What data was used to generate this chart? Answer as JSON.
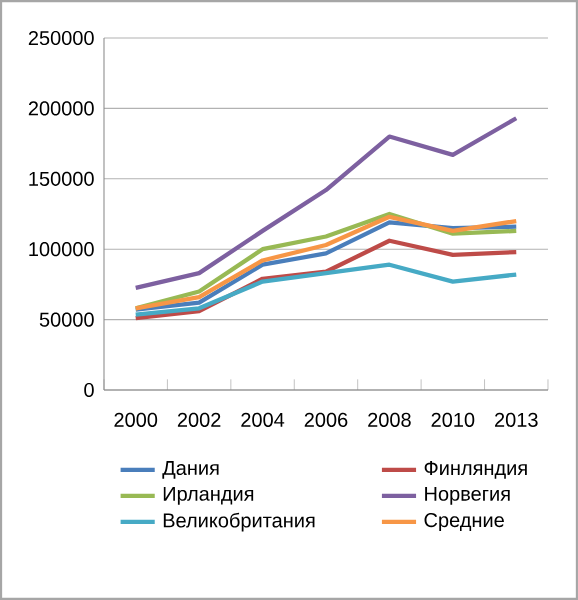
{
  "chart_data": {
    "type": "line",
    "categories": [
      "2000",
      "2002",
      "2004",
      "2006",
      "2008",
      "2010",
      "2013"
    ],
    "series": [
      {
        "name": "Дания",
        "color": "#4a7ebb",
        "values": [
          57000,
          62000,
          89000,
          97000,
          119000,
          115000,
          116000
        ]
      },
      {
        "name": "Финляндия",
        "color": "#be4b48",
        "values": [
          51000,
          56000,
          79000,
          84000,
          106000,
          96000,
          98000
        ]
      },
      {
        "name": "Ирландия",
        "color": "#98b954",
        "values": [
          58000,
          70000,
          100000,
          109000,
          125000,
          111000,
          113000
        ]
      },
      {
        "name": "Норвегия",
        "color": "#7d60a0",
        "values": [
          72500,
          83000,
          113000,
          142000,
          180000,
          167000,
          193000
        ]
      },
      {
        "name": "Великобритания",
        "color": "#46aac5",
        "values": [
          53500,
          58000,
          77000,
          83000,
          89000,
          77000,
          82000
        ]
      },
      {
        "name": "Средние",
        "color": "#f79646",
        "values": [
          58000,
          66000,
          92000,
          103000,
          123000,
          113000,
          120000
        ]
      }
    ],
    "ylim": [
      0,
      250000
    ],
    "yticks": [
      0,
      50000,
      100000,
      150000,
      200000,
      250000
    ],
    "grid": "y",
    "legend": "bottom"
  }
}
